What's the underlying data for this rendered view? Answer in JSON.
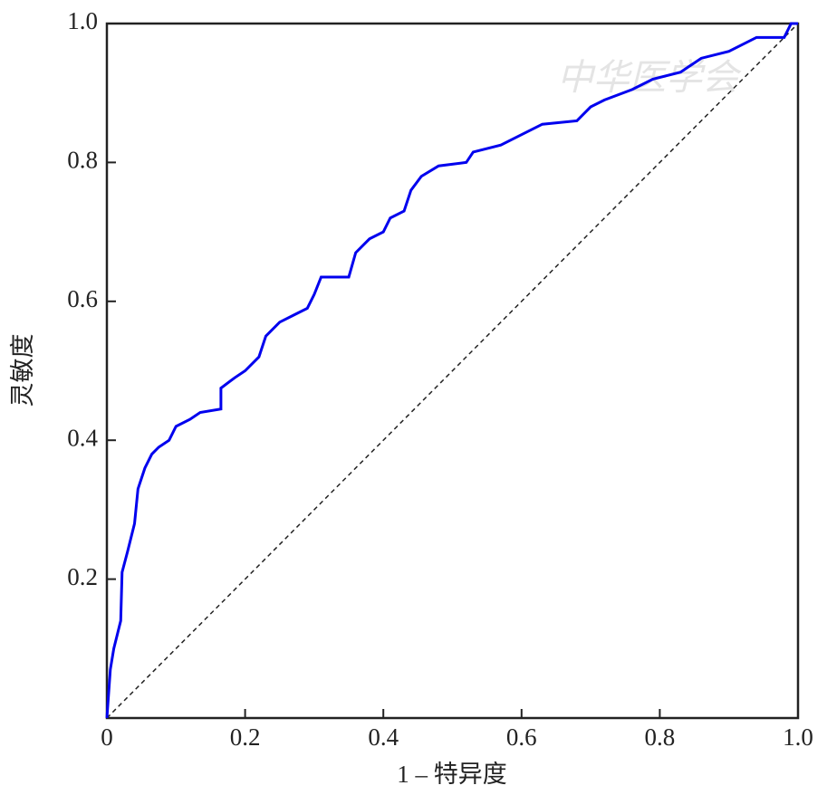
{
  "chart_data": {
    "type": "line",
    "xlabel": "1 – 特异度",
    "ylabel": "灵敏度",
    "watermark": "中华医学会",
    "xlim": [
      0,
      1
    ],
    "ylim": [
      0,
      1
    ],
    "xticks": [
      0,
      0.2,
      0.4,
      0.6,
      0.8,
      {
        "value": 1,
        "label": "1.0"
      }
    ],
    "yticks": [
      0.2,
      0.4,
      0.6,
      0.8,
      {
        "value": 1,
        "label": "1.0"
      }
    ],
    "grid": false,
    "series": [
      {
        "color": "#0000ee",
        "x": [
          0,
          0.005,
          0.01,
          0.015,
          0.02,
          0.022,
          0.03,
          0.04,
          0.045,
          0.055,
          0.065,
          0.075,
          0.09,
          0.1,
          0.12,
          0.135,
          0.165,
          0.165,
          0.185,
          0.2,
          0.22,
          0.23,
          0.25,
          0.27,
          0.29,
          0.3,
          0.31,
          0.35,
          0.36,
          0.38,
          0.4,
          0.41,
          0.43,
          0.44,
          0.455,
          0.48,
          0.52,
          0.53,
          0.57,
          0.6,
          0.63,
          0.68,
          0.7,
          0.72,
          0.76,
          0.79,
          0.83,
          0.86,
          0.9,
          0.94,
          0.98,
          0.99,
          1
        ],
        "values": [
          0,
          0.07,
          0.1,
          0.12,
          0.14,
          0.21,
          0.24,
          0.28,
          0.33,
          0.36,
          0.38,
          0.39,
          0.4,
          0.42,
          0.43,
          0.44,
          0.445,
          0.475,
          0.49,
          0.5,
          0.52,
          0.55,
          0.57,
          0.58,
          0.59,
          0.61,
          0.635,
          0.635,
          0.67,
          0.69,
          0.7,
          0.72,
          0.73,
          0.76,
          0.78,
          0.795,
          0.8,
          0.815,
          0.825,
          0.84,
          0.855,
          0.86,
          0.88,
          0.89,
          0.905,
          0.92,
          0.93,
          0.95,
          0.96,
          0.98,
          0.98,
          1,
          1
        ]
      }
    ]
  }
}
